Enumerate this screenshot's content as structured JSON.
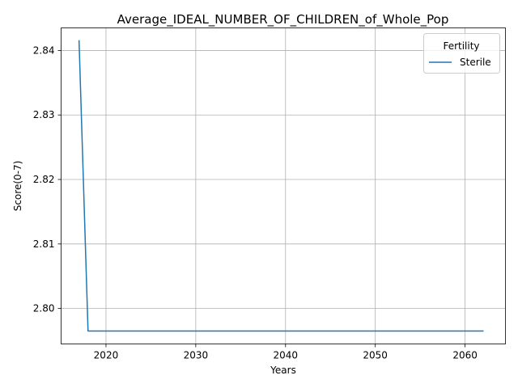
{
  "chart_data": {
    "type": "line",
    "title": "Average_IDEAL_NUMBER_OF_CHILDREN_of_Whole_Pop",
    "xlabel": "Years",
    "ylabel": "Score(0-7)",
    "xlim": [
      2015,
      2064.5
    ],
    "ylim": [
      2.7945,
      2.8435
    ],
    "xticks": [
      2020,
      2030,
      2040,
      2050,
      2060
    ],
    "yticks": [
      2.8,
      2.81,
      2.82,
      2.83,
      2.84
    ],
    "grid": true,
    "legend": {
      "title": "Fertility",
      "placement": "upper right"
    },
    "series": [
      {
        "name": "Sterile",
        "color": "#1f77b4",
        "x": [
          2017,
          2018,
          2019,
          2020,
          2021,
          2022,
          2023,
          2024,
          2025,
          2026,
          2027,
          2028,
          2029,
          2030,
          2031,
          2032,
          2033,
          2034,
          2035,
          2036,
          2037,
          2038,
          2039,
          2040,
          2041,
          2042,
          2043,
          2044,
          2045,
          2046,
          2047,
          2048,
          2049,
          2050,
          2051,
          2052,
          2053,
          2054,
          2055,
          2056,
          2057,
          2058,
          2059,
          2060,
          2061,
          2062
        ],
        "y": [
          2.8415,
          2.7965,
          2.7965,
          2.7965,
          2.7965,
          2.7965,
          2.7965,
          2.7965,
          2.7965,
          2.7965,
          2.7965,
          2.7965,
          2.7965,
          2.7965,
          2.7965,
          2.7965,
          2.7965,
          2.7965,
          2.7965,
          2.7965,
          2.7965,
          2.7965,
          2.7965,
          2.7965,
          2.7965,
          2.7965,
          2.7965,
          2.7965,
          2.7965,
          2.7965,
          2.7965,
          2.7965,
          2.7965,
          2.7965,
          2.7965,
          2.7965,
          2.7965,
          2.7965,
          2.7965,
          2.7965,
          2.7965,
          2.7965,
          2.7965,
          2.7965,
          2.7965,
          2.7965
        ]
      }
    ]
  }
}
